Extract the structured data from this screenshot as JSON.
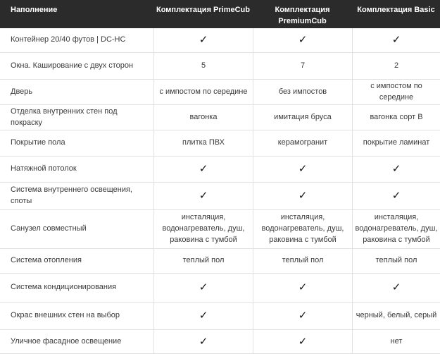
{
  "header": {
    "columns": [
      "Наполнение",
      "Комплектация PrimeCub",
      "Комплектация PremiumCub",
      "Комплектация Basic"
    ]
  },
  "table": {
    "check_glyph": "✓",
    "rows": [
      {
        "label": "Контейнер 20/40 футов | DC-HC",
        "values": [
          "✓",
          "✓",
          "✓"
        ]
      },
      {
        "label": "Окна. Каширование с двух сторон",
        "values": [
          "5",
          "7",
          "2"
        ]
      },
      {
        "label": "Дверь",
        "values": [
          "с импостом по середине",
          "без импостов",
          "с импостом по середине"
        ]
      },
      {
        "label": "Отделка внутренних стен под покраску",
        "values": [
          "вагонка",
          "имитация бруса",
          "вагонка сорт В"
        ]
      },
      {
        "label": "Покрытие пола",
        "values": [
          "плитка ПВХ",
          "керамогранит",
          "покрытие ламинат"
        ]
      },
      {
        "label": "Натяжной потолок",
        "values": [
          "✓",
          "✓",
          "✓"
        ]
      },
      {
        "label": "Система внутреннего освещения, споты",
        "values": [
          "✓",
          "✓",
          "✓"
        ]
      },
      {
        "label": "Санузел совместный",
        "values": [
          "инсталяция, водонагреватель, душ, раковина с тумбой",
          "инсталяция, водонагреватель, душ, раковина с тумбой",
          "инсталяция, водонагреватель, душ, раковина с тумбой"
        ]
      },
      {
        "label": "Система отопления",
        "values": [
          "теплый пол",
          "теплый пол",
          "теплый пол"
        ]
      },
      {
        "label": "Система кондиционирования",
        "values": [
          "✓",
          "✓",
          "✓"
        ]
      },
      {
        "label": "Окрас внешних стен на выбор",
        "values": [
          "✓",
          "✓",
          "черный, белый, серый"
        ]
      },
      {
        "label": "Уличное фасадное освещение",
        "values": [
          "✓",
          "✓",
          "нет"
        ]
      }
    ]
  },
  "colors": {
    "header_bg": "#2b2b2b",
    "header_text": "#ffffff",
    "row_bg": "#ffffff",
    "border": "#e1e1e1",
    "text": "#3a3a3a",
    "check": "#141414"
  }
}
